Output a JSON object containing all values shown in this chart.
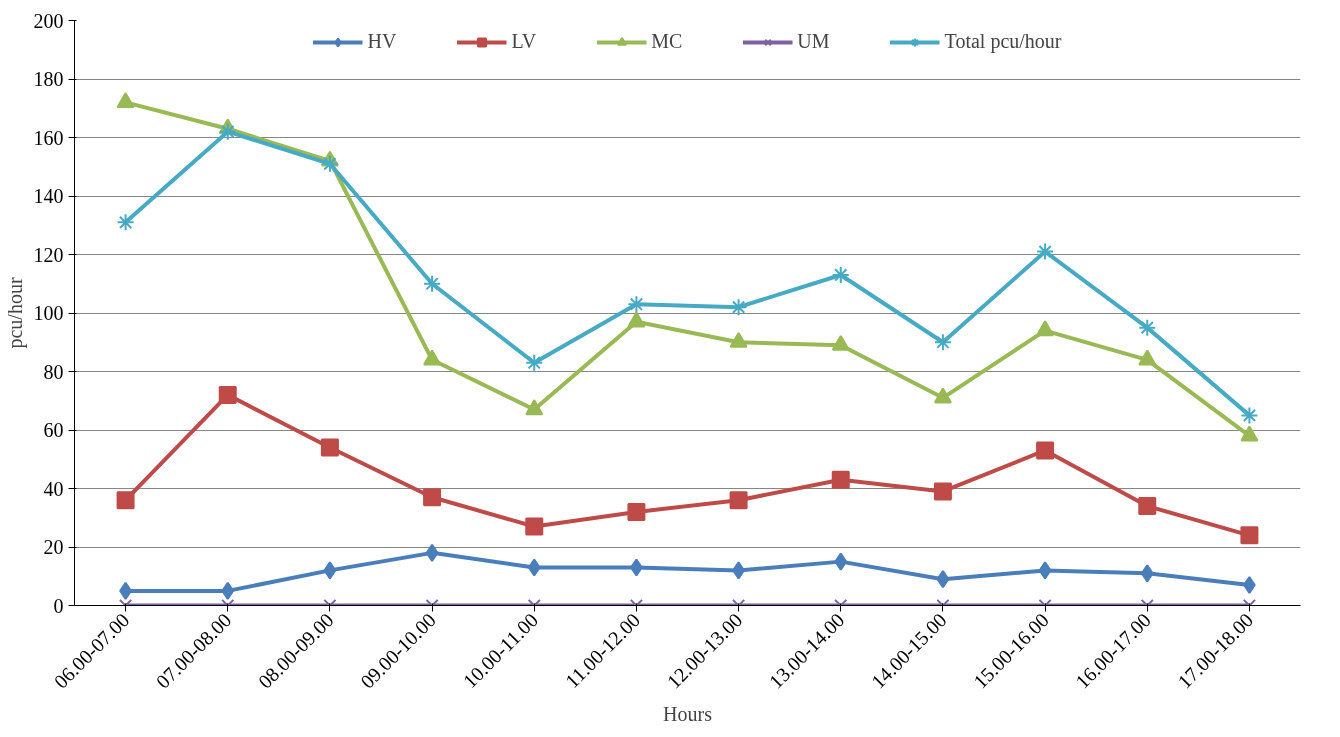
{
  "chart_data": {
    "type": "line",
    "xlabel": "Hours",
    "ylabel": "pcu/hour",
    "categories": [
      "06.00-07.00",
      "07.00-08.00",
      "08.00-09.00",
      "09.00-10.00",
      "10.00-11.00",
      "11.00-12.00",
      "12.00-13.00",
      "13.00-14.00",
      "14.00-15.00",
      "15.00-16.00",
      "16.00-17.00",
      "17.00-18.00"
    ],
    "ylim": [
      0,
      200
    ],
    "yticks": [
      0,
      20,
      40,
      60,
      80,
      100,
      120,
      140,
      160,
      180,
      200
    ],
    "grid": "y",
    "legend": "top",
    "series": [
      {
        "name": "HV",
        "color": "#4a7ebb",
        "marker": "diamond",
        "values": [
          5,
          5,
          12,
          18,
          13,
          13,
          12,
          15,
          9,
          12,
          11,
          7
        ]
      },
      {
        "name": "LV",
        "color": "#be4b48",
        "marker": "square",
        "values": [
          36,
          72,
          54,
          37,
          27,
          32,
          36,
          43,
          39,
          53,
          34,
          24
        ]
      },
      {
        "name": "MC",
        "color": "#98b954",
        "marker": "triangle",
        "values": [
          172,
          163,
          152,
          84,
          67,
          97,
          90,
          89,
          71,
          94,
          84,
          58
        ]
      },
      {
        "name": "UM",
        "color": "#7d60a0",
        "marker": "x",
        "values": [
          0,
          0,
          0,
          0,
          0,
          0,
          0,
          0,
          0,
          0,
          0,
          0
        ]
      },
      {
        "name": "Total pcu/hour",
        "color": "#46aac5",
        "marker": "cross",
        "values": [
          131,
          162,
          151,
          110,
          83,
          103,
          102,
          113,
          90,
          121,
          95,
          65
        ]
      }
    ]
  }
}
